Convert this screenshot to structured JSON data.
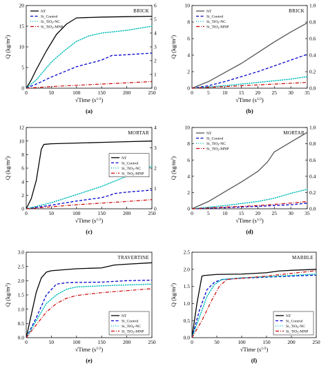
{
  "panels": [
    {
      "letter": "(a)",
      "title": "BRICK",
      "xlabel": "√Time (s",
      "xlabel_sup": "1/2",
      "xlabel_end": ")",
      "ylabel": "Q (kg/m",
      "ylabel_sup": "2",
      "ylabel_end": ")",
      "legend_pos": "top-left",
      "chart_data": {
        "type": "line",
        "title": "BRICK",
        "xlim": [
          0,
          250
        ],
        "ylim": [
          0,
          20
        ],
        "y2lim": [
          0,
          6
        ],
        "xticks": [
          "0",
          "50",
          "100",
          "150",
          "200",
          "250"
        ],
        "yticks": [
          "0",
          "5",
          "10",
          "15",
          "20"
        ],
        "y2ticks": [
          "0",
          "1",
          "2",
          "3",
          "4",
          "5",
          "6"
        ],
        "series": [
          {
            "name": "NT",
            "axis": "left",
            "color": "#000000",
            "dash": "solid",
            "x": [
              0,
              10,
              20,
              40,
              60,
              80,
              100,
              150,
              200,
              250
            ],
            "y": [
              0,
              2,
              4.5,
              9,
              13,
              15.5,
              17,
              17.2,
              17.3,
              17.4
            ]
          },
          {
            "name": "Si_Control",
            "axis": "left",
            "color": "#0000cc",
            "dash": "dash",
            "x": [
              0,
              20,
              50,
              100,
              150,
              170,
              200,
              250
            ],
            "y": [
              0,
              1,
              2.7,
              5.2,
              6.8,
              7.9,
              8.1,
              8.5
            ]
          },
          {
            "name": "Si_TiO2-NC",
            "axis": "right",
            "color": "#00bbbb",
            "dash": "dot",
            "x": [
              0,
              20,
              50,
              75,
              100,
              125,
              150,
              200,
              250
            ],
            "y": [
              0,
              0.6,
              1.9,
              2.7,
              3.4,
              3.8,
              4.0,
              4.2,
              4.5
            ]
          },
          {
            "name": "Si_TiO2-MNP",
            "axis": "left",
            "color": "#cc0000",
            "dash": "dashdot",
            "x": [
              0,
              50,
              100,
              150,
              200,
              250
            ],
            "y": [
              0,
              0.4,
              0.7,
              1.0,
              1.3,
              1.6
            ]
          }
        ]
      }
    },
    {
      "letter": "(b)",
      "title": "BRICK",
      "xlabel": "√Time (s",
      "xlabel_sup": "1/2",
      "xlabel_end": ")",
      "ylabel": "Q (kg/m",
      "ylabel_sup": "2",
      "ylabel_end": ")",
      "legend_pos": "top-left",
      "chart_data": {
        "type": "line",
        "title": "BRICK",
        "xlim": [
          0,
          35
        ],
        "ylim": [
          0,
          10
        ],
        "y2lim": [
          0,
          1.0
        ],
        "xticks": [
          "0",
          "5",
          "10",
          "15",
          "20",
          "25",
          "30",
          "35"
        ],
        "yticks": [
          "0",
          "2",
          "4",
          "6",
          "8",
          "10"
        ],
        "y2ticks": [
          "0.0",
          "0.2",
          "0.4",
          "0.6",
          "0.8",
          "1.0"
        ],
        "series": [
          {
            "name": "NT",
            "axis": "left",
            "color": "#555555",
            "dash": "solid",
            "x": [
              0,
              5,
              10,
              15,
              20,
              25,
              30,
              35
            ],
            "y": [
              0,
              0.8,
              1.9,
              3.0,
              4.3,
              5.6,
              6.8,
              7.9
            ]
          },
          {
            "name": "Si_Control",
            "axis": "left",
            "color": "#0000cc",
            "dash": "dash",
            "x": [
              0,
              5,
              10,
              15,
              20,
              25,
              30,
              35
            ],
            "y": [
              0,
              0.3,
              0.8,
              1.4,
              2.0,
              2.7,
              3.4,
              4.1
            ]
          },
          {
            "name": "Si_TiO2-NC",
            "axis": "left",
            "color": "#00bbbb",
            "dash": "dot",
            "x": [
              0,
              10,
              20,
              25,
              30,
              35
            ],
            "y": [
              0,
              0.3,
              0.7,
              0.9,
              1.1,
              1.4
            ]
          },
          {
            "name": "Si_TiO2-MNP",
            "axis": "left",
            "color": "#cc0000",
            "dash": "dashdot",
            "x": [
              0,
              10,
              20,
              30,
              35
            ],
            "y": [
              0,
              0.2,
              0.4,
              0.6,
              0.7
            ]
          }
        ]
      }
    },
    {
      "letter": "(c)",
      "title": "MORTAR",
      "xlabel": "√Time (s",
      "xlabel_sup": "1/2",
      "xlabel_end": ")",
      "ylabel": "Q (kg/m",
      "ylabel_sup": "2",
      "ylabel_end": ")",
      "legend_pos": "center-right",
      "chart_data": {
        "type": "line",
        "title": "MORTAR",
        "xlim": [
          0,
          250
        ],
        "ylim": [
          0,
          12
        ],
        "y2lim": [
          0,
          4
        ],
        "xticks": [
          "0",
          "50",
          "100",
          "150",
          "200",
          "250"
        ],
        "yticks": [
          "0",
          "2",
          "4",
          "6",
          "8",
          "10",
          "12"
        ],
        "y2ticks": [
          "0",
          "1",
          "2",
          "3",
          "4"
        ],
        "series": [
          {
            "name": "NT",
            "axis": "left",
            "color": "#000000",
            "dash": "solid",
            "x": [
              0,
              10,
              20,
              25,
              30,
              35,
              50,
              100,
              150,
              200,
              250
            ],
            "y": [
              0,
              1.5,
              4.2,
              6.5,
              8.8,
              9.5,
              9.6,
              9.7,
              9.8,
              9.9,
              10.0
            ]
          },
          {
            "name": "Si_Control",
            "axis": "right",
            "color": "#0000cc",
            "dash": "dash",
            "x": [
              0,
              50,
              100,
              150,
              165,
              175,
              200,
              250
            ],
            "y": [
              0,
              0.18,
              0.38,
              0.55,
              0.65,
              0.75,
              0.82,
              0.92
            ]
          },
          {
            "name": "Si_TiO2-NC",
            "axis": "right",
            "color": "#00bbbb",
            "dash": "dot",
            "x": [
              0,
              50,
              100,
              150,
              200,
              250
            ],
            "y": [
              0,
              0.3,
              0.7,
              1.1,
              1.6,
              2.1
            ]
          },
          {
            "name": "Si_TiO2-MNP",
            "axis": "right",
            "color": "#cc0000",
            "dash": "dashdot",
            "x": [
              0,
              50,
              100,
              150,
              200,
              250
            ],
            "y": [
              0,
              0.1,
              0.2,
              0.28,
              0.36,
              0.45
            ]
          }
        ]
      }
    },
    {
      "letter": "(d)",
      "title": "MORTAR",
      "xlabel": "√Time (s",
      "xlabel_sup": "1/2",
      "xlabel_end": ")",
      "ylabel": "Q (kg/m",
      "ylabel_sup": "2",
      "ylabel_end": ")",
      "legend_pos": "top-left",
      "chart_data": {
        "type": "line",
        "title": "MORTAR",
        "xlim": [
          0,
          35
        ],
        "ylim": [
          0,
          10
        ],
        "y2lim": [
          0,
          1.0
        ],
        "xticks": [
          "0",
          "5",
          "10",
          "15",
          "20",
          "25",
          "30",
          "35"
        ],
        "yticks": [
          "0",
          "2",
          "4",
          "6",
          "8",
          "10"
        ],
        "y2ticks": [
          "0.0",
          "0.2",
          "0.4",
          "0.6",
          "0.8",
          "1.0"
        ],
        "series": [
          {
            "name": "NT",
            "axis": "left",
            "color": "#555555",
            "dash": "solid",
            "x": [
              0,
              5,
              10,
              15,
              20,
              23,
              25,
              30,
              35
            ],
            "y": [
              0,
              0.9,
              2.1,
              3.3,
              4.6,
              5.8,
              7.0,
              8.2,
              9.4
            ]
          },
          {
            "name": "Si_Control",
            "axis": "left",
            "color": "#0000cc",
            "dash": "dash",
            "x": [
              0,
              10,
              20,
              30,
              35
            ],
            "y": [
              0,
              0.15,
              0.3,
              0.5,
              0.7
            ]
          },
          {
            "name": "Si_TiO2-NC",
            "axis": "left",
            "color": "#00bbbb",
            "dash": "dot",
            "x": [
              0,
              10,
              20,
              25,
              30,
              35
            ],
            "y": [
              0,
              0.4,
              0.9,
              1.3,
              1.9,
              2.4
            ]
          },
          {
            "name": "Si_TiO2-MNP",
            "axis": "left",
            "color": "#cc0000",
            "dash": "dashdot",
            "x": [
              0,
              10,
              20,
              30,
              35
            ],
            "y": [
              0,
              0.2,
              0.4,
              0.7,
              0.9
            ]
          }
        ]
      }
    },
    {
      "letter": "(e)",
      "title": "TRAVERTINE",
      "xlabel": "√Time (s",
      "xlabel_sup": "1/2",
      "xlabel_end": ")",
      "ylabel": "Q (kg/m",
      "ylabel_sup": "2",
      "ylabel_end": ")",
      "legend_pos": "bottom-right",
      "chart_data": {
        "type": "line",
        "title": "TRAVERTINE",
        "xlim": [
          0,
          250
        ],
        "ylim": [
          0,
          3.0
        ],
        "xticks": [
          "0",
          "50",
          "100",
          "150",
          "200",
          "250"
        ],
        "yticks": [
          "0.0",
          "0.5",
          "1.0",
          "1.5",
          "2.0",
          "2.5",
          "3.0"
        ],
        "series": [
          {
            "name": "NT",
            "axis": "left",
            "color": "#000000",
            "dash": "solid",
            "x": [
              0,
              10,
              20,
              30,
              40,
              50,
              100,
              150,
              175,
              200,
              250
            ],
            "y": [
              0,
              0.8,
              1.6,
              2.1,
              2.3,
              2.35,
              2.42,
              2.45,
              2.55,
              2.58,
              2.63
            ]
          },
          {
            "name": "Si_Control",
            "axis": "left",
            "color": "#0000cc",
            "dash": "dash",
            "x": [
              0,
              20,
              40,
              60,
              80,
              100,
              150,
              200,
              250
            ],
            "y": [
              0,
              0.7,
              1.5,
              1.88,
              1.93,
              1.94,
              1.95,
              2.0,
              2.02
            ]
          },
          {
            "name": "Si_TiO2-NC",
            "axis": "left",
            "color": "#00bbbb",
            "dash": "dot",
            "x": [
              0,
              20,
              40,
              60,
              80,
              100,
              150,
              200,
              250
            ],
            "y": [
              0,
              0.6,
              1.2,
              1.5,
              1.7,
              1.78,
              1.82,
              1.85,
              1.88
            ]
          },
          {
            "name": "Si_TiO2-MNP",
            "axis": "left",
            "color": "#cc0000",
            "dash": "dashdot",
            "x": [
              0,
              20,
              40,
              60,
              80,
              100,
              150,
              200,
              250
            ],
            "y": [
              0,
              0.45,
              0.9,
              1.2,
              1.38,
              1.48,
              1.58,
              1.65,
              1.72
            ]
          }
        ]
      }
    },
    {
      "letter": "(f)",
      "title": "MARBLE",
      "xlabel": "√Time (s",
      "xlabel_sup": "1/2",
      "xlabel_end": ")",
      "ylabel": "Q (kg/m",
      "ylabel_sup": "2",
      "ylabel_end": ")",
      "legend_pos": "bottom-right",
      "chart_data": {
        "type": "line",
        "title": "MARBLE",
        "xlim": [
          0,
          250
        ],
        "ylim": [
          0,
          2.5
        ],
        "xticks": [
          "0",
          "50",
          "100",
          "150",
          "200",
          "250"
        ],
        "yticks": [
          "0.0",
          "0.5",
          "1.0",
          "1.5",
          "2.0",
          "2.5"
        ],
        "series": [
          {
            "name": "NT",
            "axis": "left",
            "color": "#000000",
            "dash": "solid",
            "x": [
              0,
              10,
              20,
              25,
              50,
              100,
              150,
              175,
              200,
              250
            ],
            "y": [
              0,
              1.0,
              1.8,
              1.82,
              1.85,
              1.86,
              1.9,
              1.95,
              1.97,
              2.0
            ]
          },
          {
            "name": "Si_Control",
            "axis": "left",
            "color": "#0000cc",
            "dash": "dash",
            "x": [
              0,
              15,
              30,
              45,
              60,
              100,
              150,
              200,
              250
            ],
            "y": [
              0,
              0.8,
              1.4,
              1.62,
              1.7,
              1.74,
              1.77,
              1.8,
              1.83
            ]
          },
          {
            "name": "Si_TiO2-NC",
            "axis": "left",
            "color": "#00bbbb",
            "dash": "dot",
            "x": [
              0,
              15,
              30,
              45,
              60,
              100,
              150,
              200,
              250
            ],
            "y": [
              0,
              0.6,
              1.2,
              1.55,
              1.7,
              1.75,
              1.78,
              1.82,
              1.86
            ]
          },
          {
            "name": "Si_TiO2-MNP",
            "axis": "left",
            "color": "#cc0000",
            "dash": "dashdot",
            "x": [
              0,
              20,
              40,
              55,
              70,
              100,
              150,
              200,
              250
            ],
            "y": [
              0,
              0.5,
              1.1,
              1.5,
              1.7,
              1.74,
              1.8,
              1.88,
              1.96
            ]
          }
        ]
      }
    }
  ]
}
